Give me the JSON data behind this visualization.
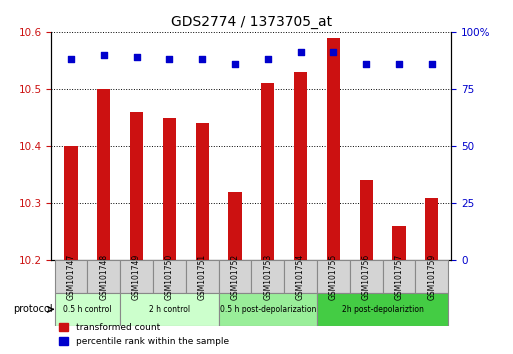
{
  "title": "GDS2774 / 1373705_at",
  "samples": [
    "GSM101747",
    "GSM101748",
    "GSM101749",
    "GSM101750",
    "GSM101751",
    "GSM101752",
    "GSM101753",
    "GSM101754",
    "GSM101755",
    "GSM101756",
    "GSM101757",
    "GSM101759"
  ],
  "red_values": [
    10.4,
    10.5,
    10.46,
    10.45,
    10.44,
    10.32,
    10.51,
    10.53,
    10.59,
    10.34,
    10.26,
    10.31
  ],
  "blue_values": [
    88,
    90,
    89,
    88,
    88,
    86,
    88,
    91,
    91,
    86,
    86,
    86
  ],
  "ylim_left": [
    10.2,
    10.6
  ],
  "ylim_right": [
    0,
    100
  ],
  "yticks_left": [
    10.2,
    10.3,
    10.4,
    10.5,
    10.6
  ],
  "yticks_right": [
    0,
    25,
    50,
    75,
    100
  ],
  "groups": [
    {
      "label": "0.5 h control",
      "start": 0,
      "end": 2,
      "color": "#ccffcc"
    },
    {
      "label": "2 h control",
      "start": 2,
      "end": 5,
      "color": "#ccffcc"
    },
    {
      "label": "0.5 h post-depolarization",
      "start": 5,
      "end": 8,
      "color": "#88ee88"
    },
    {
      "label": "2h post-depolariztion",
      "start": 8,
      "end": 11,
      "color": "#44cc44"
    }
  ],
  "bar_color": "#cc1111",
  "dot_color": "#0000cc",
  "background_color": "#ffffff",
  "plot_bg": "#ffffff",
  "grid_color": "#000000",
  "tick_label_color_left": "#cc1111",
  "tick_label_color_right": "#0000cc",
  "legend_items": [
    {
      "label": "transformed count",
      "color": "#cc1111"
    },
    {
      "label": "percentile rank within the sample",
      "color": "#0000cc"
    }
  ]
}
